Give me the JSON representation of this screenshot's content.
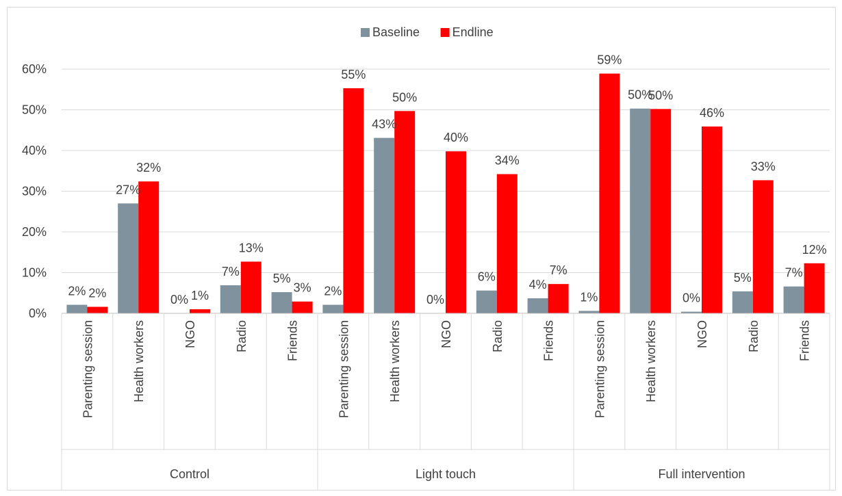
{
  "chart_data": {
    "type": "bar",
    "title": "",
    "xlabel": "",
    "ylabel": "",
    "ylim": [
      0,
      60
    ],
    "yticks": [
      "0%",
      "10%",
      "20%",
      "30%",
      "40%",
      "50%",
      "60%"
    ],
    "grid": true,
    "legend_position": "top",
    "groups": [
      {
        "name": "Control",
        "categories": [
          "Parenting session",
          "Health workers",
          "NGO",
          "Radio",
          "Friends"
        ]
      },
      {
        "name": "Light touch",
        "categories": [
          "Parenting session",
          "Health workers",
          "NGO",
          "Radio",
          "Friends"
        ]
      },
      {
        "name": "Full intervention",
        "categories": [
          "Parenting session",
          "Health workers",
          "NGO",
          "Radio",
          "Friends"
        ]
      }
    ],
    "series": [
      {
        "name": "Baseline",
        "color": "#7f929d",
        "values": [
          2.1,
          27.0,
          0.0,
          6.9,
          5.2,
          2.1,
          43.1,
          0.0,
          5.6,
          3.7,
          0.6,
          50.3,
          0.4,
          5.4,
          6.6
        ],
        "labels": [
          "2%",
          "27%",
          "0%",
          "7%",
          "5%",
          "2%",
          "43%",
          "0%",
          "6%",
          "4%",
          "1%",
          "50%",
          "0%",
          "5%",
          "7%"
        ]
      },
      {
        "name": "Endline",
        "color": "#ff0000",
        "values": [
          1.6,
          32.4,
          1.0,
          12.7,
          2.9,
          55.3,
          49.7,
          39.8,
          34.2,
          7.2,
          58.9,
          50.2,
          45.9,
          32.7,
          12.3
        ],
        "labels": [
          "2%",
          "32%",
          "1%",
          "13%",
          "3%",
          "55%",
          "50%",
          "40%",
          "34%",
          "7%",
          "59%",
          "50%",
          "46%",
          "33%",
          "12%"
        ]
      }
    ]
  }
}
